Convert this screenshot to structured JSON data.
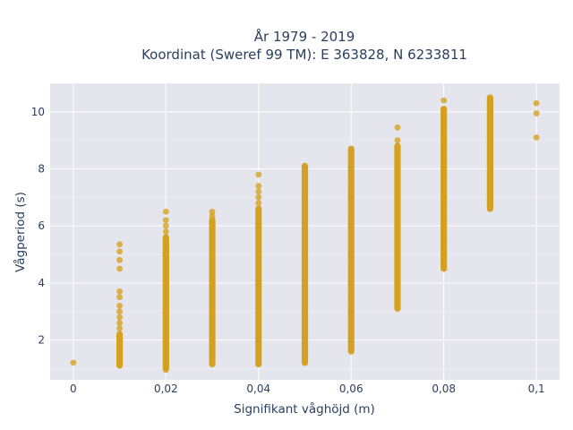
{
  "chart_data": {
    "type": "scatter",
    "title_line1": "År 1979 - 2019",
    "title_line2": "Koordinat (Sweref 99 TM): E 363828, N 6233811",
    "xlabel": "Signifikant våghöjd (m)",
    "ylabel": "Vågperiod (s)",
    "xlim": [
      -0.005,
      0.105
    ],
    "ylim": [
      0.6,
      11.0
    ],
    "xticks": [
      0,
      0.02,
      0.04,
      0.06,
      0.08,
      0.1
    ],
    "xtick_labels": [
      "0",
      "0,02",
      "0,04",
      "0,06",
      "0,08",
      "0,1"
    ],
    "yticks": [
      2,
      4,
      6,
      8,
      10
    ],
    "ytick_labels": [
      "2",
      "4",
      "6",
      "8",
      "10"
    ],
    "grid": true,
    "marker_color": "#d4a11f",
    "plot_bg": "#e5e5ee",
    "columns": [
      {
        "x": 0.0,
        "solid": null,
        "points": [
          1.2
        ]
      },
      {
        "x": 0.01,
        "solid": [
          1.1,
          2.2
        ],
        "points": [
          2.4,
          2.6,
          2.8,
          3.0,
          3.2,
          3.5,
          3.7,
          4.5,
          4.8,
          5.1,
          5.35
        ]
      },
      {
        "x": 0.02,
        "solid": [
          1.0,
          5.6
        ],
        "points": [
          0.95,
          5.8,
          6.0,
          6.2,
          6.5
        ]
      },
      {
        "x": 0.03,
        "solid": [
          1.15,
          6.2
        ],
        "points": [
          6.35,
          6.5
        ]
      },
      {
        "x": 0.04,
        "solid": [
          1.15,
          6.6
        ],
        "points": [
          6.8,
          7.0,
          7.2,
          7.4,
          7.8
        ]
      },
      {
        "x": 0.05,
        "solid": [
          1.2,
          8.1
        ],
        "points": []
      },
      {
        "x": 0.06,
        "solid": [
          1.6,
          8.7
        ],
        "points": []
      },
      {
        "x": 0.07,
        "solid": [
          3.1,
          8.8
        ],
        "points": [
          9.0,
          9.45
        ]
      },
      {
        "x": 0.08,
        "solid": [
          4.5,
          10.1
        ],
        "points": [
          10.4
        ]
      },
      {
        "x": 0.09,
        "solid": [
          6.6,
          10.5
        ],
        "points": []
      },
      {
        "x": 0.1,
        "solid": null,
        "points": [
          9.1,
          9.95,
          10.3
        ]
      }
    ]
  }
}
